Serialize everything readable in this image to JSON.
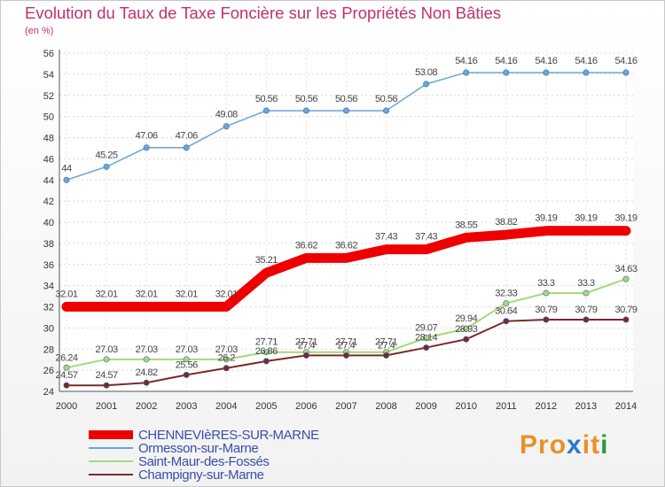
{
  "title": "Evolution du Taux de Taxe Foncière sur les Propriétés Non Bâties",
  "subtitle": "(en %)",
  "logo": {
    "text": "ProXiti",
    "letters": [
      "P",
      "r",
      "o",
      "x",
      "i",
      "t",
      "i"
    ],
    "colors": [
      "#e8902a",
      "#e8902a",
      "#e8902a",
      "#2a7ac8",
      "#e8902a",
      "#e8902a",
      "#2a9a3a"
    ]
  },
  "chart_data": {
    "type": "line",
    "title": "Evolution du Taux de Taxe Foncière sur les Propriétés Non Bâties",
    "ylabel": "(en %)",
    "xlabel": "",
    "ylim": [
      24,
      56
    ],
    "yticks": [
      24,
      26,
      28,
      30,
      32,
      34,
      36,
      38,
      40,
      42,
      44,
      46,
      48,
      50,
      52,
      54,
      56
    ],
    "grid": true,
    "legend_position": "bottom-left",
    "x": [
      "2000",
      "2001",
      "2002",
      "2003",
      "2004",
      "2005",
      "2006",
      "2007",
      "2008",
      "2009",
      "2010",
      "2011",
      "2012",
      "2013",
      "2014"
    ],
    "series": [
      {
        "name": "CHENNEVIèRES-SUR-MARNE",
        "color": "#ee0000",
        "values": [
          32.01,
          32.01,
          32.01,
          32.01,
          32.01,
          35.21,
          36.62,
          36.62,
          37.43,
          37.43,
          38.55,
          38.82,
          39.19,
          39.19,
          39.19
        ],
        "labels": [
          "32.01",
          "32.01",
          "32.01",
          "32.01",
          "32.01",
          "35.21",
          "36.62",
          "36.62",
          "37.43",
          "37.43",
          "38.55",
          "38.82",
          "39.19",
          "39.19",
          "39.19"
        ]
      },
      {
        "name": "Ormesson-sur-Marne",
        "color": "#6aa6d8",
        "values": [
          44,
          45.25,
          47.06,
          47.06,
          49.08,
          50.56,
          50.56,
          50.56,
          50.56,
          53.08,
          54.16,
          54.16,
          54.16,
          54.16,
          54.16
        ],
        "labels": [
          "44",
          "45.25",
          "47.06",
          "47.06",
          "49.08",
          "50.56",
          "50.56",
          "50.56",
          "50.56",
          "53.08",
          "54.16",
          "54.16",
          "54.16",
          "54.16",
          "54.16"
        ]
      },
      {
        "name": "Saint-Maur-des-Fossés",
        "color": "#a8d878",
        "values": [
          26.24,
          27.03,
          27.03,
          27.03,
          27.03,
          27.71,
          27.71,
          27.71,
          27.71,
          29.07,
          29.94,
          32.33,
          33.3,
          33.3,
          34.63
        ],
        "labels": [
          "26.24",
          "27.03",
          "27.03",
          "27.03",
          "27.03",
          "27.71",
          "27.71",
          "27.71",
          "27.71",
          "29.07",
          "29.94",
          "32.33",
          "33.3",
          "33.3",
          "34.63"
        ]
      },
      {
        "name": "Champigny-sur-Marne",
        "color": "#7a2a2a",
        "values": [
          24.57,
          24.57,
          24.82,
          25.56,
          26.2,
          26.86,
          27.4,
          27.4,
          27.4,
          28.14,
          28.93,
          30.64,
          30.79,
          30.79,
          30.79
        ],
        "labels": [
          "24.57",
          "24.57",
          "24.82",
          "25.56",
          "26.2",
          "26.86",
          "27.4",
          "27.4",
          "27.4",
          "28.14",
          "28.93",
          "30.64",
          "30.79",
          "30.79",
          "30.79"
        ]
      }
    ]
  }
}
